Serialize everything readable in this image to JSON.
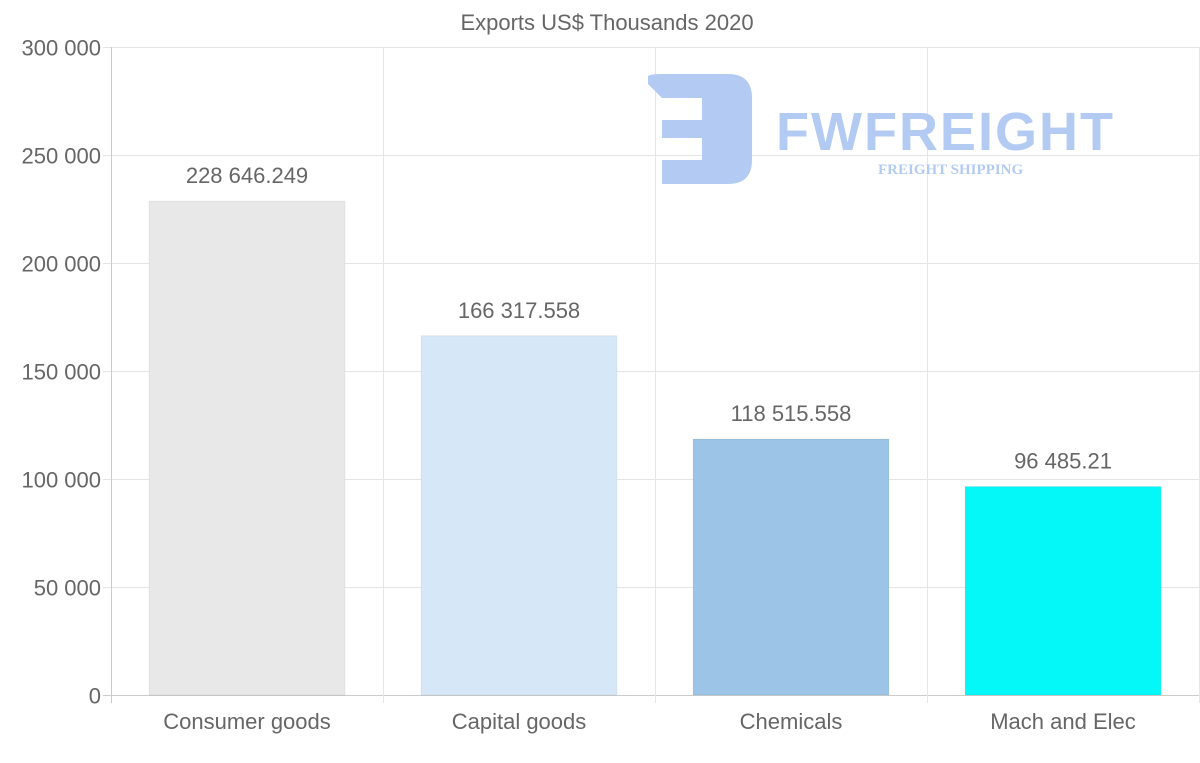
{
  "chart_data": {
    "type": "bar",
    "title": "Exports US$ Thousands 2020",
    "xlabel": "",
    "ylabel": "",
    "categories": [
      "Consumer goods",
      "Capital goods",
      "Chemicals",
      "Mach and Elec"
    ],
    "values": [
      228646.249,
      166317.558,
      118515.558,
      96485.21
    ],
    "value_labels": [
      "228 646.249",
      "166 317.558",
      "118 515.558",
      "96 485.21"
    ],
    "bar_colors": [
      "#e8e8e8",
      "#d6e8f8",
      "#9bc4e6",
      "#04f8f8"
    ],
    "ylim": [
      0,
      300000
    ],
    "yticks": [
      0,
      50000,
      100000,
      150000,
      200000,
      250000,
      300000
    ],
    "ytick_labels": [
      "0",
      "50 000",
      "100 000",
      "150 000",
      "200 000",
      "250 000",
      "300 000"
    ],
    "grid": true,
    "legend": "none"
  },
  "watermark": {
    "brand": "FWFREIGHT",
    "tagline": "FREIGHT SHIPPING",
    "color": "#b3cbf3"
  }
}
